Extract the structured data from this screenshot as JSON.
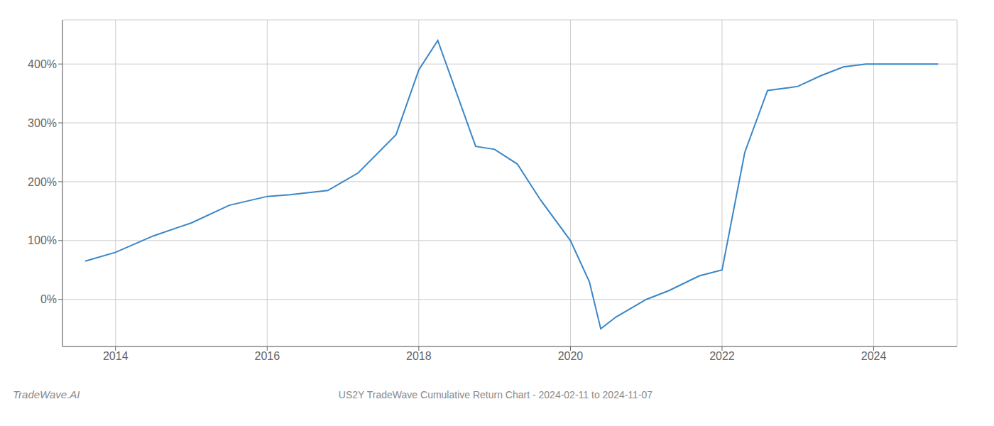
{
  "chart_data": {
    "type": "line",
    "title": "US2Y TradeWave Cumulative Return Chart - 2024-02-11 to 2024-11-07",
    "annotations": [
      "TradeWave.AI"
    ],
    "color": "#3a86c8",
    "grid": true,
    "x": [
      2013.6,
      2014.0,
      2014.5,
      2015.0,
      2015.5,
      2016.0,
      2016.3,
      2016.8,
      2017.2,
      2017.7,
      2018.0,
      2018.25,
      2018.75,
      2019.0,
      2019.3,
      2019.6,
      2020.0,
      2020.25,
      2020.4,
      2020.6,
      2021.0,
      2021.3,
      2021.7,
      2022.0,
      2022.3,
      2022.6,
      2022.9,
      2023.0,
      2023.3,
      2023.6,
      2023.9,
      2024.0,
      2024.4,
      2024.85
    ],
    "values": [
      65,
      80,
      108,
      130,
      160,
      175,
      178,
      185,
      215,
      280,
      390,
      440,
      260,
      255,
      230,
      170,
      100,
      30,
      -50,
      -30,
      0,
      15,
      40,
      50,
      250,
      355,
      360,
      362,
      380,
      395,
      400,
      400,
      400,
      400
    ],
    "xlim": [
      2013.3,
      2025.1
    ],
    "ylim": [
      -80,
      475
    ],
    "xticks": [
      2014,
      2016,
      2018,
      2020,
      2022,
      2024
    ],
    "yticks": [
      {
        "value": 0,
        "label": "0%"
      },
      {
        "value": 100,
        "label": "100%"
      },
      {
        "value": 200,
        "label": "200%"
      },
      {
        "value": 300,
        "label": "300%"
      },
      {
        "value": 400,
        "label": "400%"
      }
    ]
  }
}
